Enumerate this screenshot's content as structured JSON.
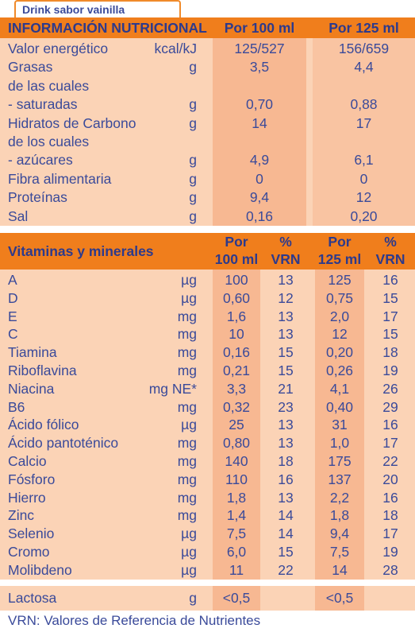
{
  "tab_title": "Drink sabor vainilla",
  "nutrition": {
    "header": {
      "title": "INFORMACIÓN NUTRICIONAL",
      "col1": "Por 100 ml",
      "col2": "Por 125 ml"
    },
    "rows": [
      {
        "name": "Valor energético",
        "unit": "kcal/kJ",
        "v1": "125/527",
        "v2": "156/659"
      },
      {
        "name": "Grasas",
        "unit": "g",
        "v1": "3,5",
        "v2": "4,4"
      },
      {
        "name": "de las cuales",
        "unit": "",
        "v1": "",
        "v2": ""
      },
      {
        "name": "- saturadas",
        "unit": "g",
        "v1": "0,70",
        "v2": "0,88"
      },
      {
        "name": "Hidratos de Carbono",
        "unit": "g",
        "v1": "14",
        "v2": "17"
      },
      {
        "name": "de los cuales",
        "unit": "",
        "v1": "",
        "v2": ""
      },
      {
        "name": "- azúcares",
        "unit": "g",
        "v1": "4,9",
        "v2": "6,1"
      },
      {
        "name": "Fibra alimentaria",
        "unit": "g",
        "v1": "0",
        "v2": "0"
      },
      {
        "name": "Proteínas",
        "unit": "g",
        "v1": "9,4",
        "v2": "12"
      },
      {
        "name": "Sal",
        "unit": "g",
        "v1": "0,16",
        "v2": "0,20"
      }
    ]
  },
  "vitamins": {
    "header": {
      "title": "Vitaminas y minerales",
      "c1_line1": "Por",
      "c1_line2": "100 ml",
      "c2_line1": "%",
      "c2_line2": "VRN",
      "c3_line1": "Por",
      "c3_line2": "125 ml",
      "c4_line1": "%",
      "c4_line2": "VRN"
    },
    "rows": [
      {
        "name": "A",
        "unit": "µg",
        "v1": "100",
        "p1": "13",
        "v2": "125",
        "p2": "16"
      },
      {
        "name": "D",
        "unit": "µg",
        "v1": "0,60",
        "p1": "12",
        "v2": "0,75",
        "p2": "15"
      },
      {
        "name": "E",
        "unit": "mg",
        "v1": "1,6",
        "p1": "13",
        "v2": "2,0",
        "p2": "17"
      },
      {
        "name": "C",
        "unit": "mg",
        "v1": "10",
        "p1": "13",
        "v2": "12",
        "p2": "15"
      },
      {
        "name": "Tiamina",
        "unit": "mg",
        "v1": "0,16",
        "p1": "15",
        "v2": "0,20",
        "p2": "18"
      },
      {
        "name": "Riboflavina",
        "unit": "mg",
        "v1": "0,21",
        "p1": "15",
        "v2": "0,26",
        "p2": "19"
      },
      {
        "name": "Niacina",
        "unit": "mg NE*",
        "v1": "3,3",
        "p1": "21",
        "v2": "4,1",
        "p2": "26"
      },
      {
        "name": "B6",
        "unit": "mg",
        "v1": "0,32",
        "p1": "23",
        "v2": "0,40",
        "p2": "29"
      },
      {
        "name": "Ácido fólico",
        "unit": "µg",
        "v1": "25",
        "p1": "13",
        "v2": "31",
        "p2": "16"
      },
      {
        "name": "Ácido pantoténico",
        "unit": "mg",
        "v1": "0,80",
        "p1": "13",
        "v2": "1,0",
        "p2": "17"
      },
      {
        "name": "Calcio",
        "unit": "mg",
        "v1": "140",
        "p1": "18",
        "v2": "175",
        "p2": "22"
      },
      {
        "name": "Fósforo",
        "unit": "mg",
        "v1": "110",
        "p1": "16",
        "v2": "137",
        "p2": "20"
      },
      {
        "name": "Hierro",
        "unit": "mg",
        "v1": "1,8",
        "p1": "13",
        "v2": "2,2",
        "p2": "16"
      },
      {
        "name": "Zinc",
        "unit": "mg",
        "v1": "1,4",
        "p1": "14",
        "v2": "1,8",
        "p2": "18"
      },
      {
        "name": "Selenio",
        "unit": "µg",
        "v1": "7,5",
        "p1": "14",
        "v2": "9,4",
        "p2": "17"
      },
      {
        "name": "Cromo",
        "unit": "µg",
        "v1": "6,0",
        "p1": "15",
        "v2": "7,5",
        "p2": "19"
      },
      {
        "name": "Molibdeno",
        "unit": "µg",
        "v1": "11",
        "p1": "22",
        "v2": "14",
        "p2": "28"
      }
    ]
  },
  "lactose": {
    "name": "Lactosa",
    "unit": "g",
    "v1": "<0,5",
    "v2": "<0,5"
  },
  "footnote": "VRN: Valores de Referencia de Nutrientes",
  "colors": {
    "header_orange": "#f07e1c",
    "light_peach": "#fbd3b6",
    "mid_peach": "#f7b892",
    "text_blue": "#3a4a9a"
  }
}
